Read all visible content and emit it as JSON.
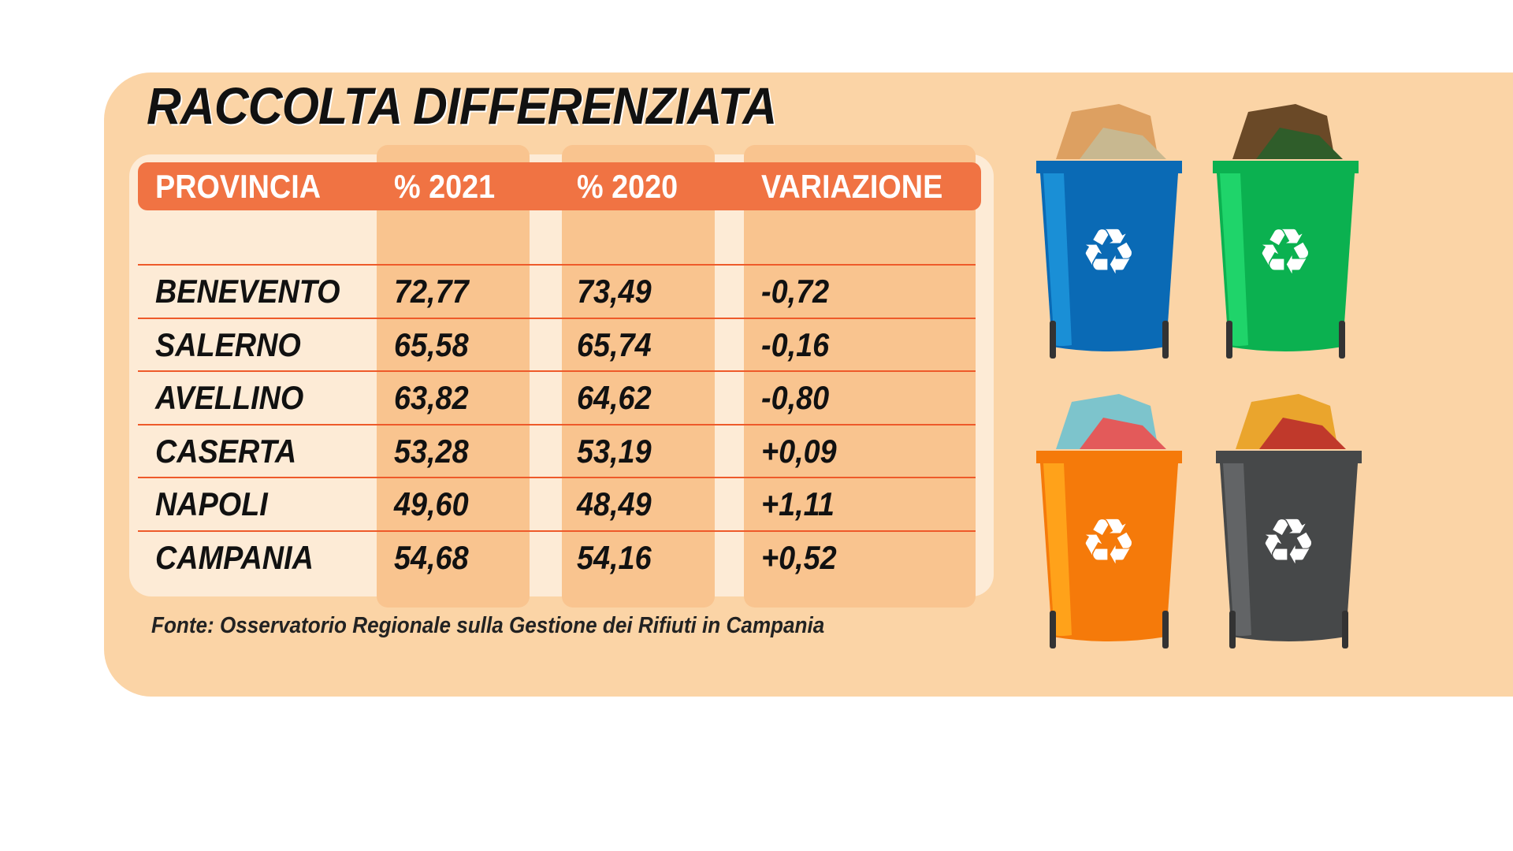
{
  "title": "RACCOLTA DIFFERENZIATA",
  "table": {
    "headers": [
      "PROVINCIA",
      "% 2021",
      "% 2020",
      "VARIAZIONE"
    ],
    "rows": [
      [
        "BENEVENTO",
        "72,77",
        "73,49",
        "-0,72"
      ],
      [
        "SALERNO",
        "65,58",
        "65,74",
        "-0,16"
      ],
      [
        "AVELLINO",
        "63,82",
        "64,62",
        "-0,80"
      ],
      [
        "CASERTA",
        "53,28",
        "53,19",
        "+0,09"
      ],
      [
        "NAPOLI",
        "49,60",
        "48,49",
        "+1,11"
      ],
      [
        "CAMPANIA",
        "54,68",
        "54,16",
        "+0,52"
      ]
    ]
  },
  "source": "Fonte: Osservatorio Regionale sulla Gestione dei Rifiuti in Campania",
  "bins": [
    {
      "name": "paper-bin-icon",
      "color": "#0a6ab5",
      "light": "#1a8fd6"
    },
    {
      "name": "glass-bin-icon",
      "color": "#0bb150",
      "light": "#1fd46a"
    },
    {
      "name": "plastic-bin-icon",
      "color": "#f57a0a",
      "light": "#ffa21a"
    },
    {
      "name": "organic-bin-icon",
      "color": "#464849",
      "light": "#626466"
    }
  ],
  "colors": {
    "panel": "#fbd4a6",
    "header": "#f07343",
    "column": "#f9c48f",
    "line": "#ee5a2a"
  }
}
